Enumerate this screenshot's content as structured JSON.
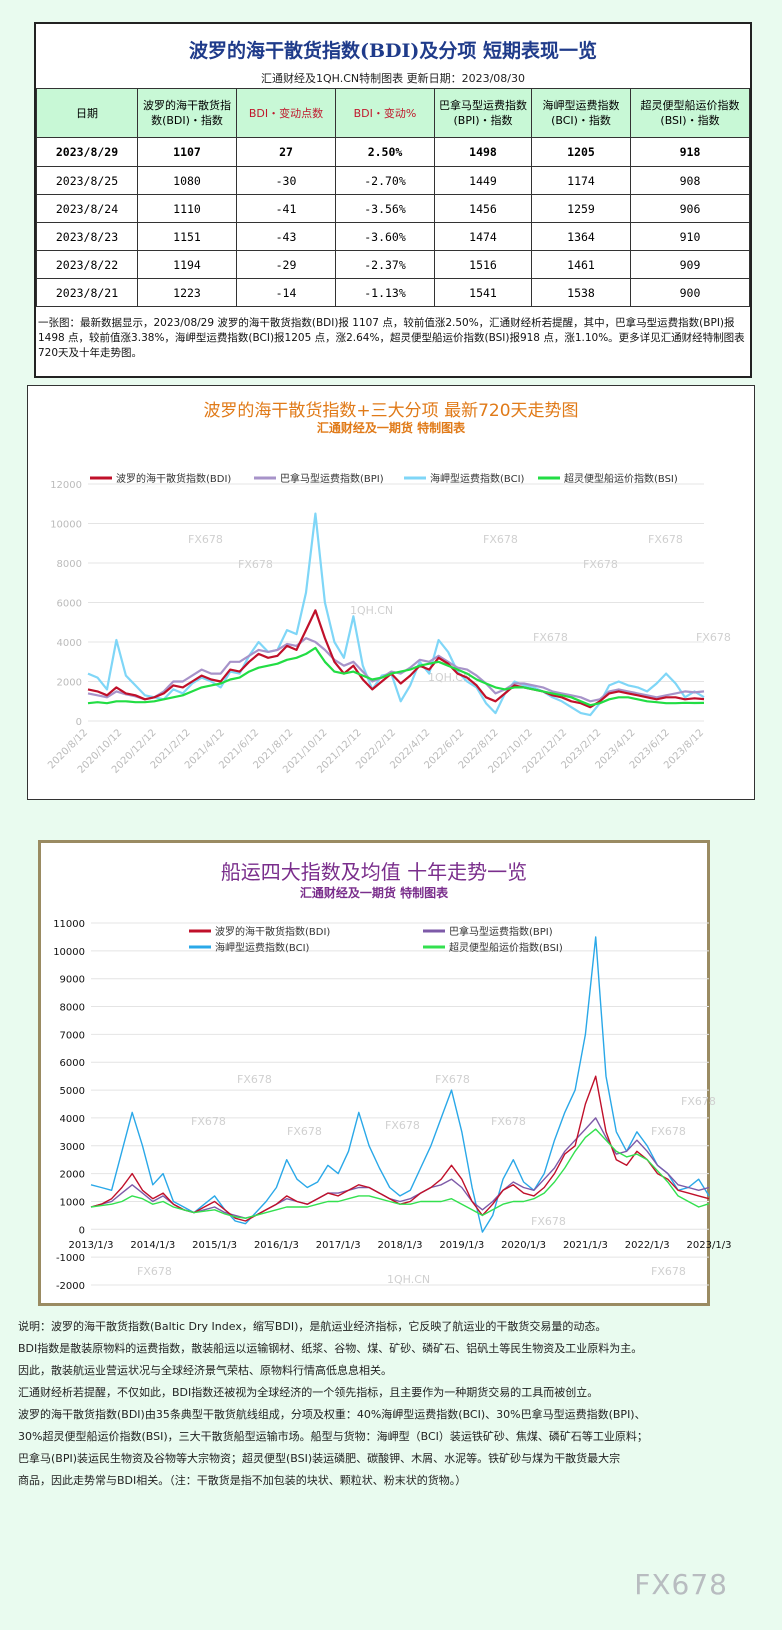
{
  "table_section": {
    "title": "波罗的海干散货指数(BDI)及分项 短期表现一览",
    "subtitle": "汇通财经及1QH.CN特制图表    更新日期：2023/08/30",
    "headers": [
      "日期",
      "波罗的海干散货指数(BDI)・指数",
      "BDI・变动点数",
      "BDI・变动%",
      "巴拿马型运费指数(BPI)・指数",
      "海岬型运费指数(BCI)・指数",
      "超灵便型船运价指数(BSI)・指数"
    ],
    "rows": [
      [
        "2023/8/29",
        "1107",
        "27",
        "2.50%",
        "1498",
        "1205",
        "918"
      ],
      [
        "2023/8/25",
        "1080",
        "-30",
        "-2.70%",
        "1449",
        "1174",
        "908"
      ],
      [
        "2023/8/24",
        "1110",
        "-41",
        "-3.56%",
        "1456",
        "1259",
        "906"
      ],
      [
        "2023/8/23",
        "1151",
        "-43",
        "-3.60%",
        "1474",
        "1364",
        "910"
      ],
      [
        "2023/8/22",
        "1194",
        "-29",
        "-2.37%",
        "1516",
        "1461",
        "909"
      ],
      [
        "2023/8/21",
        "1223",
        "-14",
        "-1.13%",
        "1541",
        "1538",
        "900"
      ]
    ],
    "summary": "一张图：最新数据显示，2023/08/29 波罗的海干散货指数(BDI)报 1107 点，较前值涨2.50%，汇通财经析若提醒，其中，巴拿马型运费指数(BPI)报1498 点，较前值涨3.38%，海岬型运费指数(BCI)报1205 点，涨2.64%，超灵便型船运价指数(BSI)报918 点，涨1.10%。更多详见汇通财经特制图表720天及十年走势图。"
  },
  "watermark": "FX678",
  "watermark2": "1QH.CN",
  "brand": "FX678",
  "colors": {
    "bdi": "#c0102a",
    "bpi": "#a793c9",
    "bci": "#7fd6f7",
    "bsi": "#22dd44",
    "bci10": "#2aa8e8",
    "bpi10": "#7d5aa8",
    "bsi10": "#33e04f",
    "title2": "#e07a18",
    "title3": "#7a2e8c"
  },
  "chart_data": [
    {
      "type": "line",
      "title": "波罗的海干散货指数+三大分项  最新720天走势图",
      "subtitle": "汇通财经及一期货  特制图表",
      "ylim": [
        0,
        12000
      ],
      "yticks": [
        0,
        2000,
        4000,
        6000,
        8000,
        10000,
        12000
      ],
      "xticks": [
        "2020/8/12",
        "2020/10/12",
        "2020/12/12",
        "2021/2/12",
        "2021/4/12",
        "2021/6/12",
        "2021/8/12",
        "2021/10/12",
        "2021/12/12",
        "2022/2/12",
        "2022/4/12",
        "2022/6/12",
        "2022/8/12",
        "2022/10/12",
        "2022/12/12",
        "2023/2/12",
        "2023/4/12",
        "2023/6/12",
        "2023/8/12"
      ],
      "legend": "top",
      "grid": true,
      "series": [
        {
          "name": "波罗的海干散货指数(BDI)",
          "values": [
            1600,
            1500,
            1300,
            1700,
            1400,
            1300,
            1100,
            1200,
            1400,
            1800,
            1700,
            2000,
            2300,
            2100,
            2000,
            2600,
            2500,
            3000,
            3400,
            3200,
            3300,
            3800,
            3600,
            4600,
            5600,
            4200,
            3000,
            2400,
            2800,
            2100,
            1600,
            2000,
            2400,
            1900,
            2300,
            2800,
            2600,
            3200,
            2900,
            2400,
            2200,
            1800,
            1200,
            1000,
            1400,
            1800,
            1700,
            1600,
            1500,
            1300,
            1200,
            1000,
            900,
            700,
            1000,
            1400,
            1500,
            1400,
            1300,
            1200,
            1100,
            1200,
            1200,
            1100,
            1150,
            1107
          ]
        },
        {
          "name": "巴拿马型运费指数(BPI)",
          "values": [
            1400,
            1300,
            1200,
            1500,
            1350,
            1250,
            1100,
            1200,
            1500,
            2000,
            2000,
            2300,
            2600,
            2400,
            2400,
            3000,
            3000,
            3300,
            3600,
            3500,
            3600,
            3900,
            3800,
            4200,
            4000,
            3600,
            3100,
            2800,
            3000,
            2500,
            2000,
            2200,
            2500,
            2400,
            2700,
            3100,
            3000,
            3300,
            3000,
            2700,
            2600,
            2300,
            1900,
            1400,
            1600,
            1900,
            1900,
            1800,
            1700,
            1500,
            1400,
            1300,
            1200,
            1000,
            1100,
            1500,
            1600,
            1500,
            1400,
            1300,
            1200,
            1300,
            1400,
            1500,
            1450,
            1498
          ]
        },
        {
          "name": "海岬型运费指数(BCI)",
          "values": [
            2400,
            2200,
            1600,
            4100,
            2300,
            1800,
            1300,
            1200,
            1100,
            1600,
            1400,
            1900,
            2200,
            2000,
            1700,
            2500,
            2400,
            3300,
            4000,
            3500,
            3600,
            4600,
            4400,
            6500,
            10500,
            6000,
            4000,
            3200,
            5300,
            2800,
            1600,
            2300,
            2400,
            1000,
            1800,
            3000,
            2400,
            4100,
            3500,
            2500,
            2000,
            1700,
            900,
            400,
            1400,
            2000,
            1800,
            1700,
            1500,
            1200,
            1000,
            700,
            400,
            300,
            900,
            1800,
            2000,
            1800,
            1700,
            1500,
            1900,
            2400,
            1900,
            1200,
            1500,
            1205
          ]
        },
        {
          "name": "超灵便型船运价指数(BSI)",
          "values": [
            900,
            950,
            900,
            1000,
            1000,
            950,
            950,
            1000,
            1100,
            1200,
            1300,
            1500,
            1700,
            1800,
            1900,
            2100,
            2200,
            2500,
            2700,
            2800,
            2900,
            3100,
            3200,
            3400,
            3700,
            3000,
            2500,
            2400,
            2500,
            2300,
            2100,
            2200,
            2400,
            2500,
            2600,
            2800,
            2900,
            3000,
            2800,
            2600,
            2400,
            2100,
            1900,
            1700,
            1600,
            1700,
            1700,
            1600,
            1500,
            1400,
            1300,
            1200,
            1000,
            800,
            900,
            1100,
            1200,
            1200,
            1100,
            1000,
            950,
            900,
            900,
            920,
            910,
            918
          ]
        }
      ]
    },
    {
      "type": "line",
      "title": "船运四大指数及均值 十年走势一览",
      "subtitle": "汇通财经及一期货 特制图表",
      "ylim": [
        -2000,
        11000
      ],
      "yticks": [
        -2000,
        -1000,
        0,
        1000,
        2000,
        3000,
        4000,
        5000,
        6000,
        7000,
        8000,
        9000,
        10000,
        11000
      ],
      "xticks": [
        "2013/1/3",
        "2014/1/3",
        "2015/1/3",
        "2016/1/3",
        "2017/1/3",
        "2018/1/3",
        "2019/1/3",
        "2020/1/3",
        "2021/1/3",
        "2022/1/3",
        "2023/1/3"
      ],
      "legend": "top",
      "grid": true,
      "series": [
        {
          "name": "波罗的海干散货指数(BDI)",
          "values": [
            800,
            900,
            1100,
            1500,
            2000,
            1400,
            1100,
            1300,
            900,
            700,
            600,
            800,
            1000,
            700,
            400,
            300,
            500,
            700,
            900,
            1200,
            1000,
            900,
            1100,
            1300,
            1200,
            1400,
            1600,
            1500,
            1300,
            1100,
            900,
            1000,
            1300,
            1500,
            1800,
            2300,
            1800,
            1000,
            500,
            900,
            1400,
            1600,
            1300,
            1200,
            1500,
            2000,
            2700,
            3000,
            4500,
            5500,
            3500,
            2500,
            2300,
            2800,
            2500,
            2000,
            1800,
            1400,
            1300,
            1200,
            1100
          ]
        },
        {
          "name": "巴拿马型运费指数(BPI)",
          "values": [
            800,
            900,
            1000,
            1300,
            1600,
            1300,
            1000,
            1200,
            900,
            700,
            600,
            700,
            800,
            600,
            500,
            400,
            500,
            700,
            900,
            1100,
            1000,
            900,
            1100,
            1300,
            1300,
            1400,
            1500,
            1500,
            1300,
            1100,
            1000,
            1100,
            1300,
            1500,
            1600,
            1800,
            1500,
            1000,
            700,
            1000,
            1400,
            1700,
            1500,
            1400,
            1800,
            2200,
            2800,
            3200,
            3600,
            4000,
            3300,
            2700,
            2800,
            3200,
            2800,
            2300,
            2000,
            1600,
            1500,
            1400,
            1500
          ]
        },
        {
          "name": "海岬型运费指数(BCI)",
          "values": [
            1600,
            1500,
            1400,
            2800,
            4200,
            3000,
            1600,
            2000,
            1000,
            800,
            600,
            900,
            1200,
            700,
            300,
            200,
            600,
            1000,
            1500,
            2500,
            1800,
            1500,
            1700,
            2300,
            2000,
            2800,
            4200,
            3000,
            2200,
            1500,
            1200,
            1400,
            2200,
            3000,
            4000,
            5000,
            3500,
            1500,
            -100,
            500,
            1800,
            2500,
            1700,
            1400,
            2000,
            3200,
            4200,
            5000,
            7000,
            10500,
            5500,
            3500,
            2800,
            3500,
            3000,
            2300,
            2000,
            1400,
            1500,
            1800,
            1200
          ]
        },
        {
          "name": "超灵便型船运价指数(BSI)",
          "values": [
            800,
            850,
            900,
            1000,
            1200,
            1100,
            900,
            1000,
            800,
            700,
            600,
            650,
            700,
            550,
            450,
            400,
            500,
            600,
            700,
            800,
            800,
            800,
            900,
            1000,
            1000,
            1100,
            1200,
            1200,
            1100,
            1000,
            900,
            900,
            1000,
            1000,
            1000,
            1100,
            900,
            700,
            500,
            700,
            900,
            1000,
            1000,
            1100,
            1300,
            1700,
            2200,
            2800,
            3300,
            3600,
            3200,
            2800,
            2600,
            2700,
            2500,
            2100,
            1700,
            1200,
            1000,
            800,
            918
          ]
        }
      ]
    }
  ],
  "description": [
    "说明：波罗的海干散货指数(Baltic Dry Index，缩写BDI)，是航运业经济指标，它反映了航运业的干散货交易量的动态。",
    "BDI指数是散装原物料的运费指数，散装船运以运输钢材、纸浆、谷物、煤、矿砂、磷矿石、铝矾土等民生物资及工业原料为主。",
    "因此，散装航运业营运状况与全球经济景气荣枯、原物料行情高低息息相关。",
    "汇通财经析若提醒，不仅如此，BDI指数还被视为全球经济的一个领先指标，且主要作为一种期货交易的工具而被创立。",
    "波罗的海干散货指数(BDI)由35条典型干散货航线组成，分项及权重：40%海岬型运费指数(BCI)、30%巴拿马型运费指数(BPI)、",
    "30%超灵便型船运价指数(BSI)，三大干散货船型运输市场。船型与货物：海岬型（BCI）装运铁矿砂、焦煤、磷矿石等工业原料；",
    "巴拿马(BPI)装运民生物资及谷物等大宗物资；超灵便型(BSI)装运磷肥、碳酸钾、木屑、水泥等。铁矿砂与煤为干散货最大宗",
    "商品，因此走势常与BDI相关。（注：干散货是指不加包装的块状、颗粒状、粉末状的货物。）"
  ]
}
